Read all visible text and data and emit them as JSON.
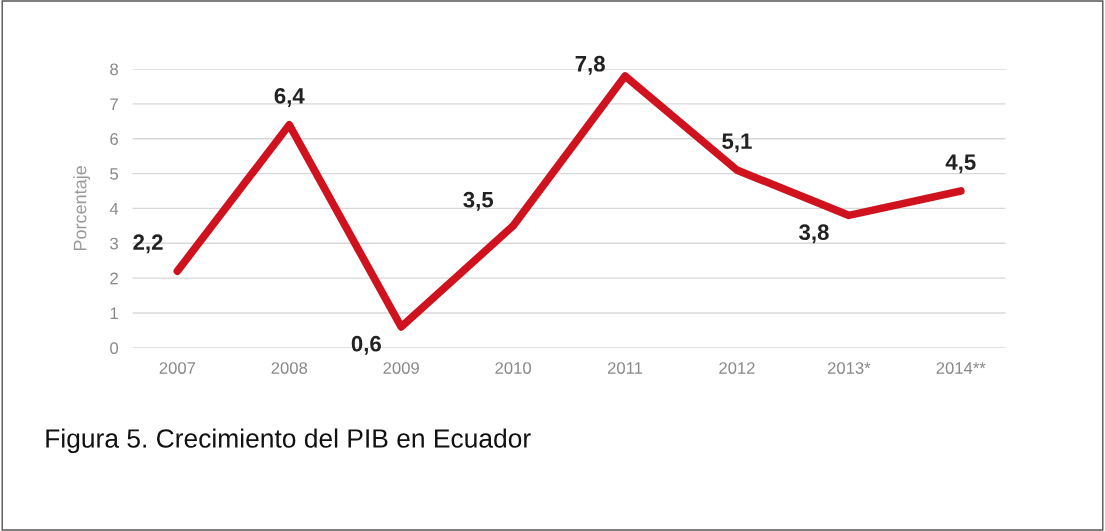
{
  "chart_data": {
    "type": "line",
    "ylabel": "Porcentaje",
    "categories": [
      "2007",
      "2008",
      "2009",
      "2010",
      "2011",
      "2012",
      "2013*",
      "2014**"
    ],
    "series": [
      {
        "color": "#d0121e",
        "values": [
          2.2,
          6.4,
          0.6,
          3.5,
          7.8,
          5.1,
          3.8,
          4.5
        ],
        "value_labels": [
          "2,2",
          "6,4",
          "0,6",
          "3,5",
          "7,8",
          "5,1",
          "3,8",
          "4,5"
        ]
      }
    ],
    "ylim": [
      0,
      8
    ],
    "yticks": [
      0,
      1,
      2,
      3,
      4,
      5,
      6,
      7,
      8
    ],
    "grid": "y",
    "marker": "none",
    "line_style": "solid",
    "annotations": [
      "Figura 5. Crecimiento del PIB en Ecuador"
    ]
  }
}
